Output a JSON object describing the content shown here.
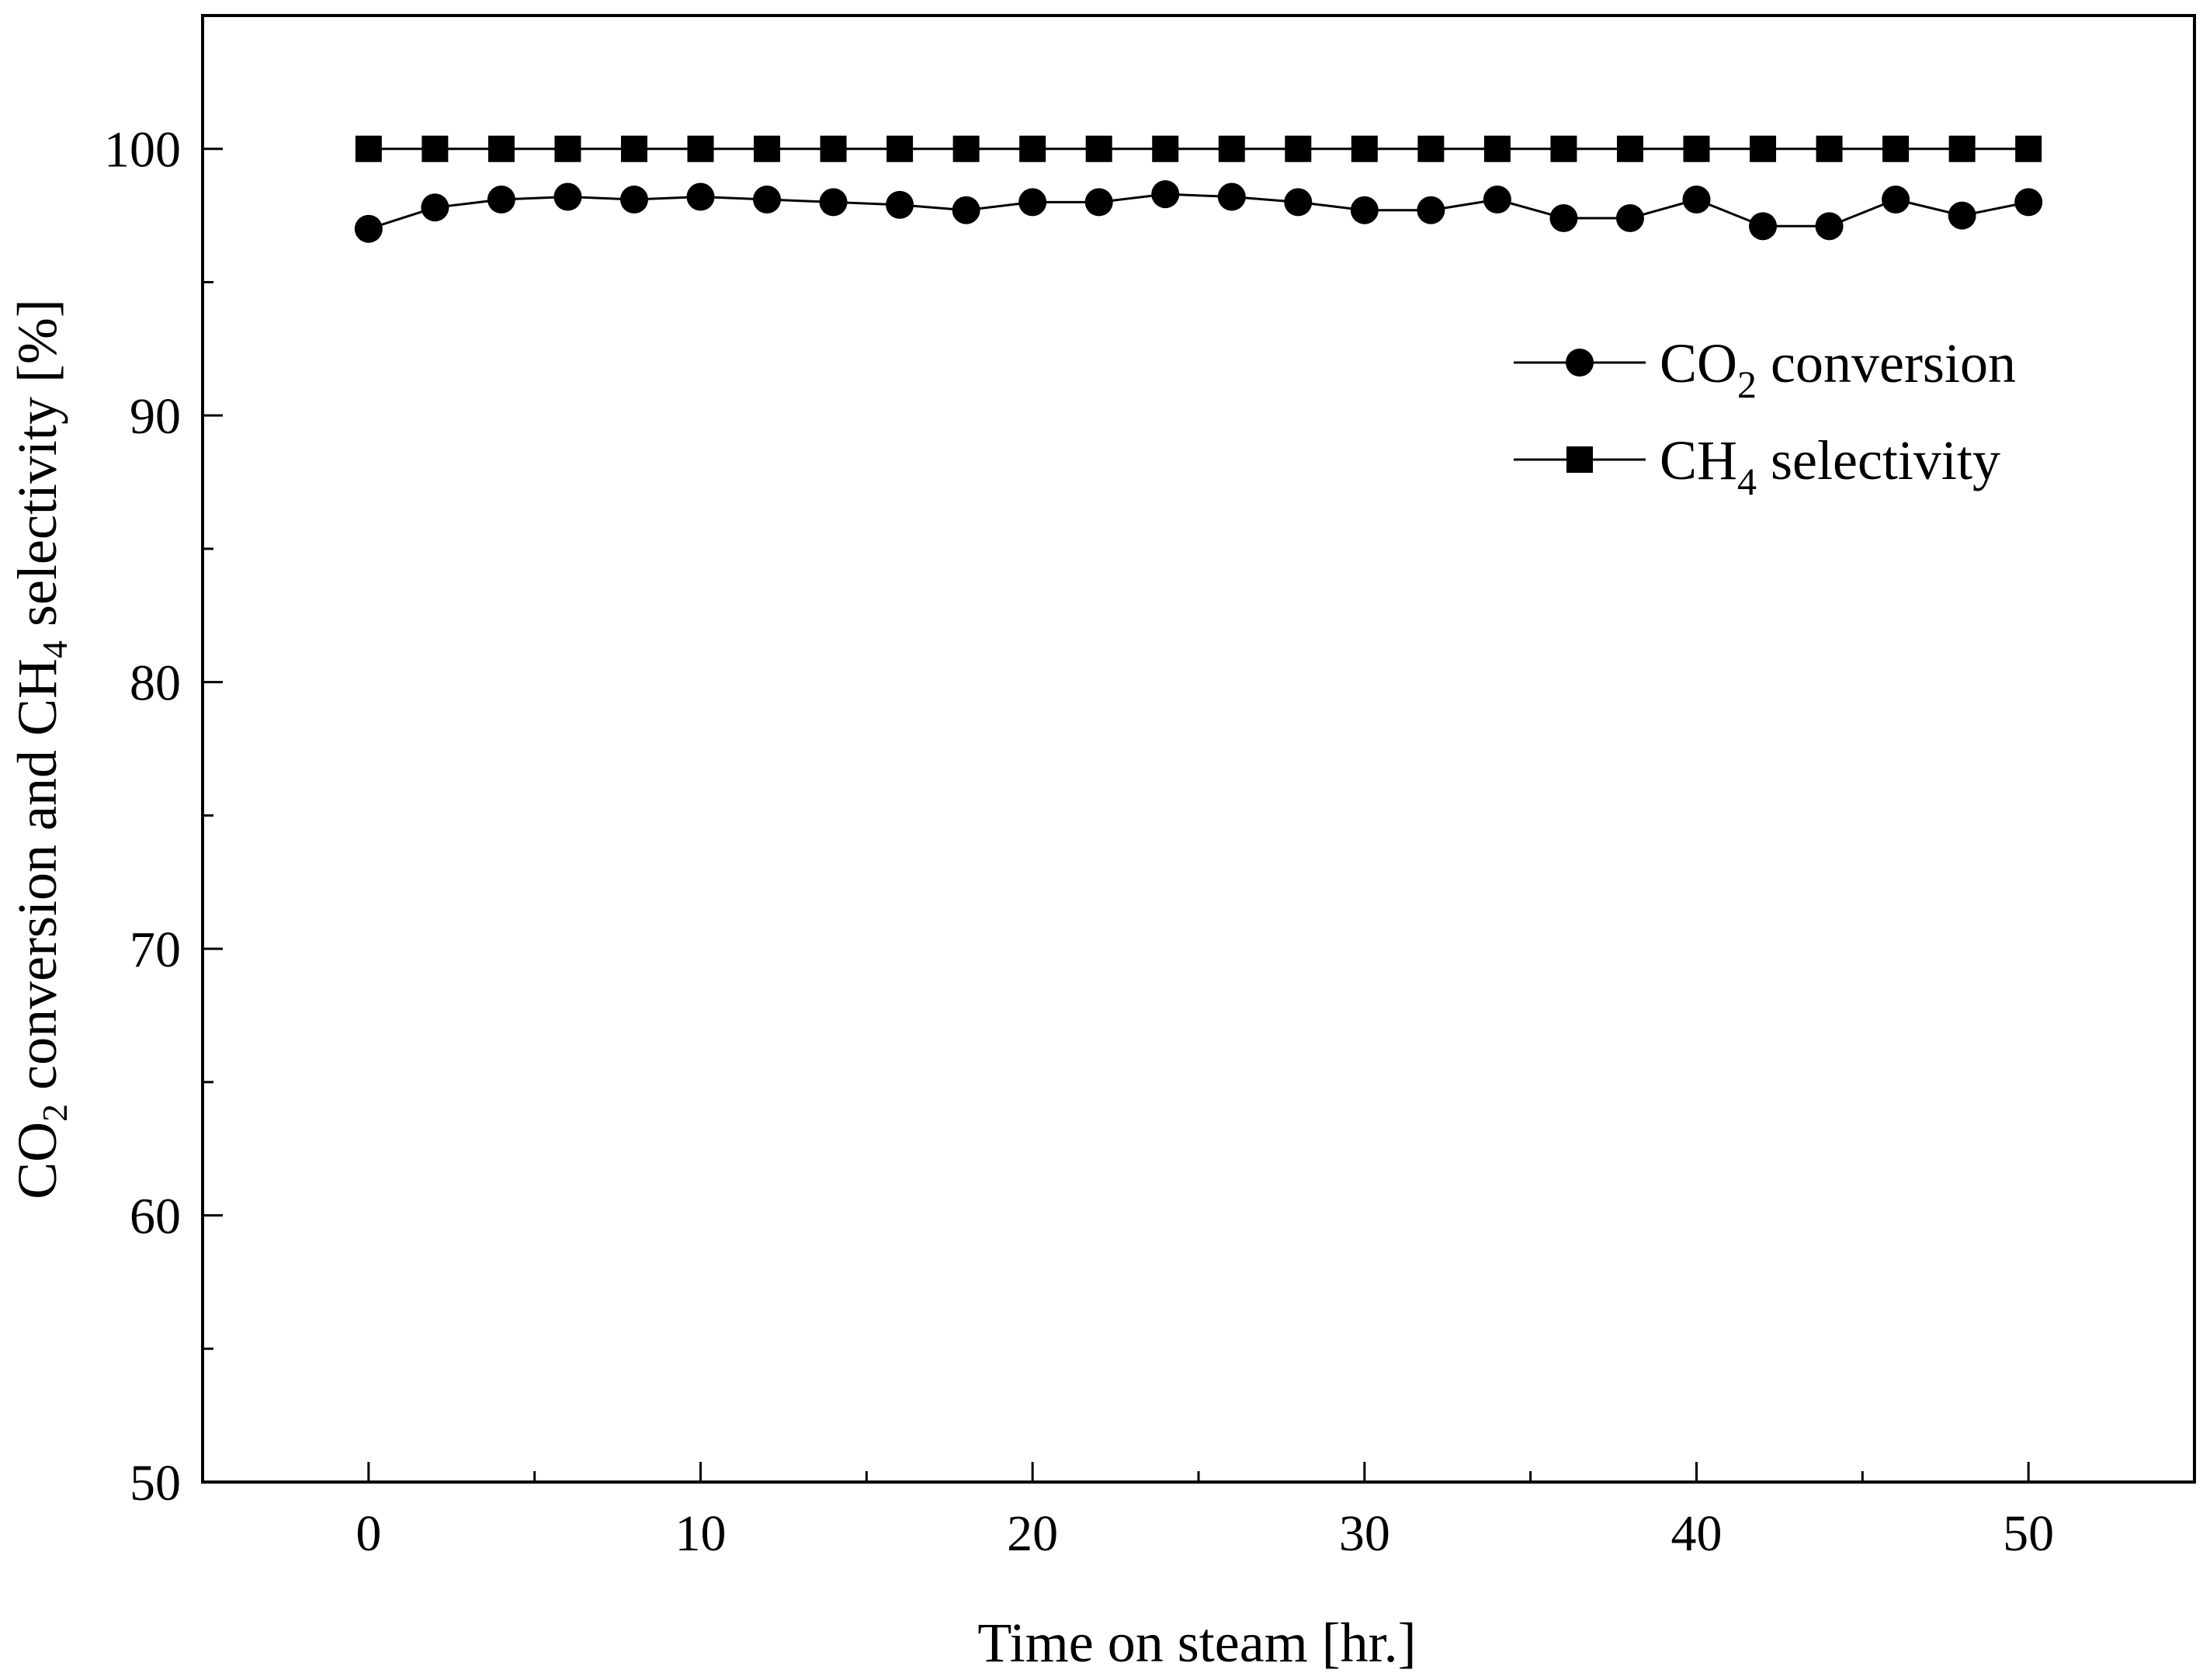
{
  "chart_data": {
    "type": "line",
    "title": "",
    "xlabel": "Time on steam [hr.]",
    "ylabel": "CO2 conversion and CH4 selectivity [%]",
    "ylabel_parts": {
      "a": "CO",
      "a_sub": "2",
      "b": " conversion and CH",
      "b_sub": "4",
      "c": " selectivity [%]"
    },
    "xlim": [
      -5,
      55
    ],
    "ylim": [
      50,
      105
    ],
    "x_ticks": [
      0,
      10,
      20,
      30,
      40,
      50
    ],
    "x_tick_labels": [
      "0",
      "10",
      "20",
      "30",
      "40",
      "50"
    ],
    "y_ticks": [
      50,
      60,
      70,
      80,
      90,
      100
    ],
    "y_tick_labels": [
      "50",
      "60",
      "70",
      "80",
      "90",
      "100"
    ],
    "grid": false,
    "legend": "top-right",
    "x": [
      0,
      2,
      4,
      6,
      8,
      10,
      12,
      14,
      16,
      18,
      20,
      22,
      24,
      26,
      28,
      30,
      32,
      34,
      36,
      38,
      40,
      42,
      44,
      46,
      48,
      50
    ],
    "series": [
      {
        "name": "CO2 conversion",
        "name_parts": {
          "a": "CO",
          "sub": "2",
          "b": " conversion"
        },
        "marker": "circle",
        "values": [
          97.0,
          97.8,
          98.1,
          98.2,
          98.1,
          98.2,
          98.1,
          98.0,
          97.9,
          97.7,
          98.0,
          98.0,
          98.3,
          98.2,
          98.0,
          97.7,
          97.7,
          98.1,
          97.4,
          97.4,
          98.1,
          97.1,
          97.1,
          98.1,
          97.5,
          98.0
        ]
      },
      {
        "name": "CH4 selectivity",
        "name_parts": {
          "a": "CH",
          "sub": "4",
          "b": " selectivity"
        },
        "marker": "square",
        "values": [
          100,
          100,
          100,
          100,
          100,
          100,
          100,
          100,
          100,
          100,
          100,
          100,
          100,
          100,
          100,
          100,
          100,
          100,
          100,
          100,
          100,
          100,
          100,
          100,
          100,
          100
        ]
      }
    ],
    "colors": {
      "line": "#000000",
      "marker": "#000000",
      "axis": "#000000"
    }
  }
}
